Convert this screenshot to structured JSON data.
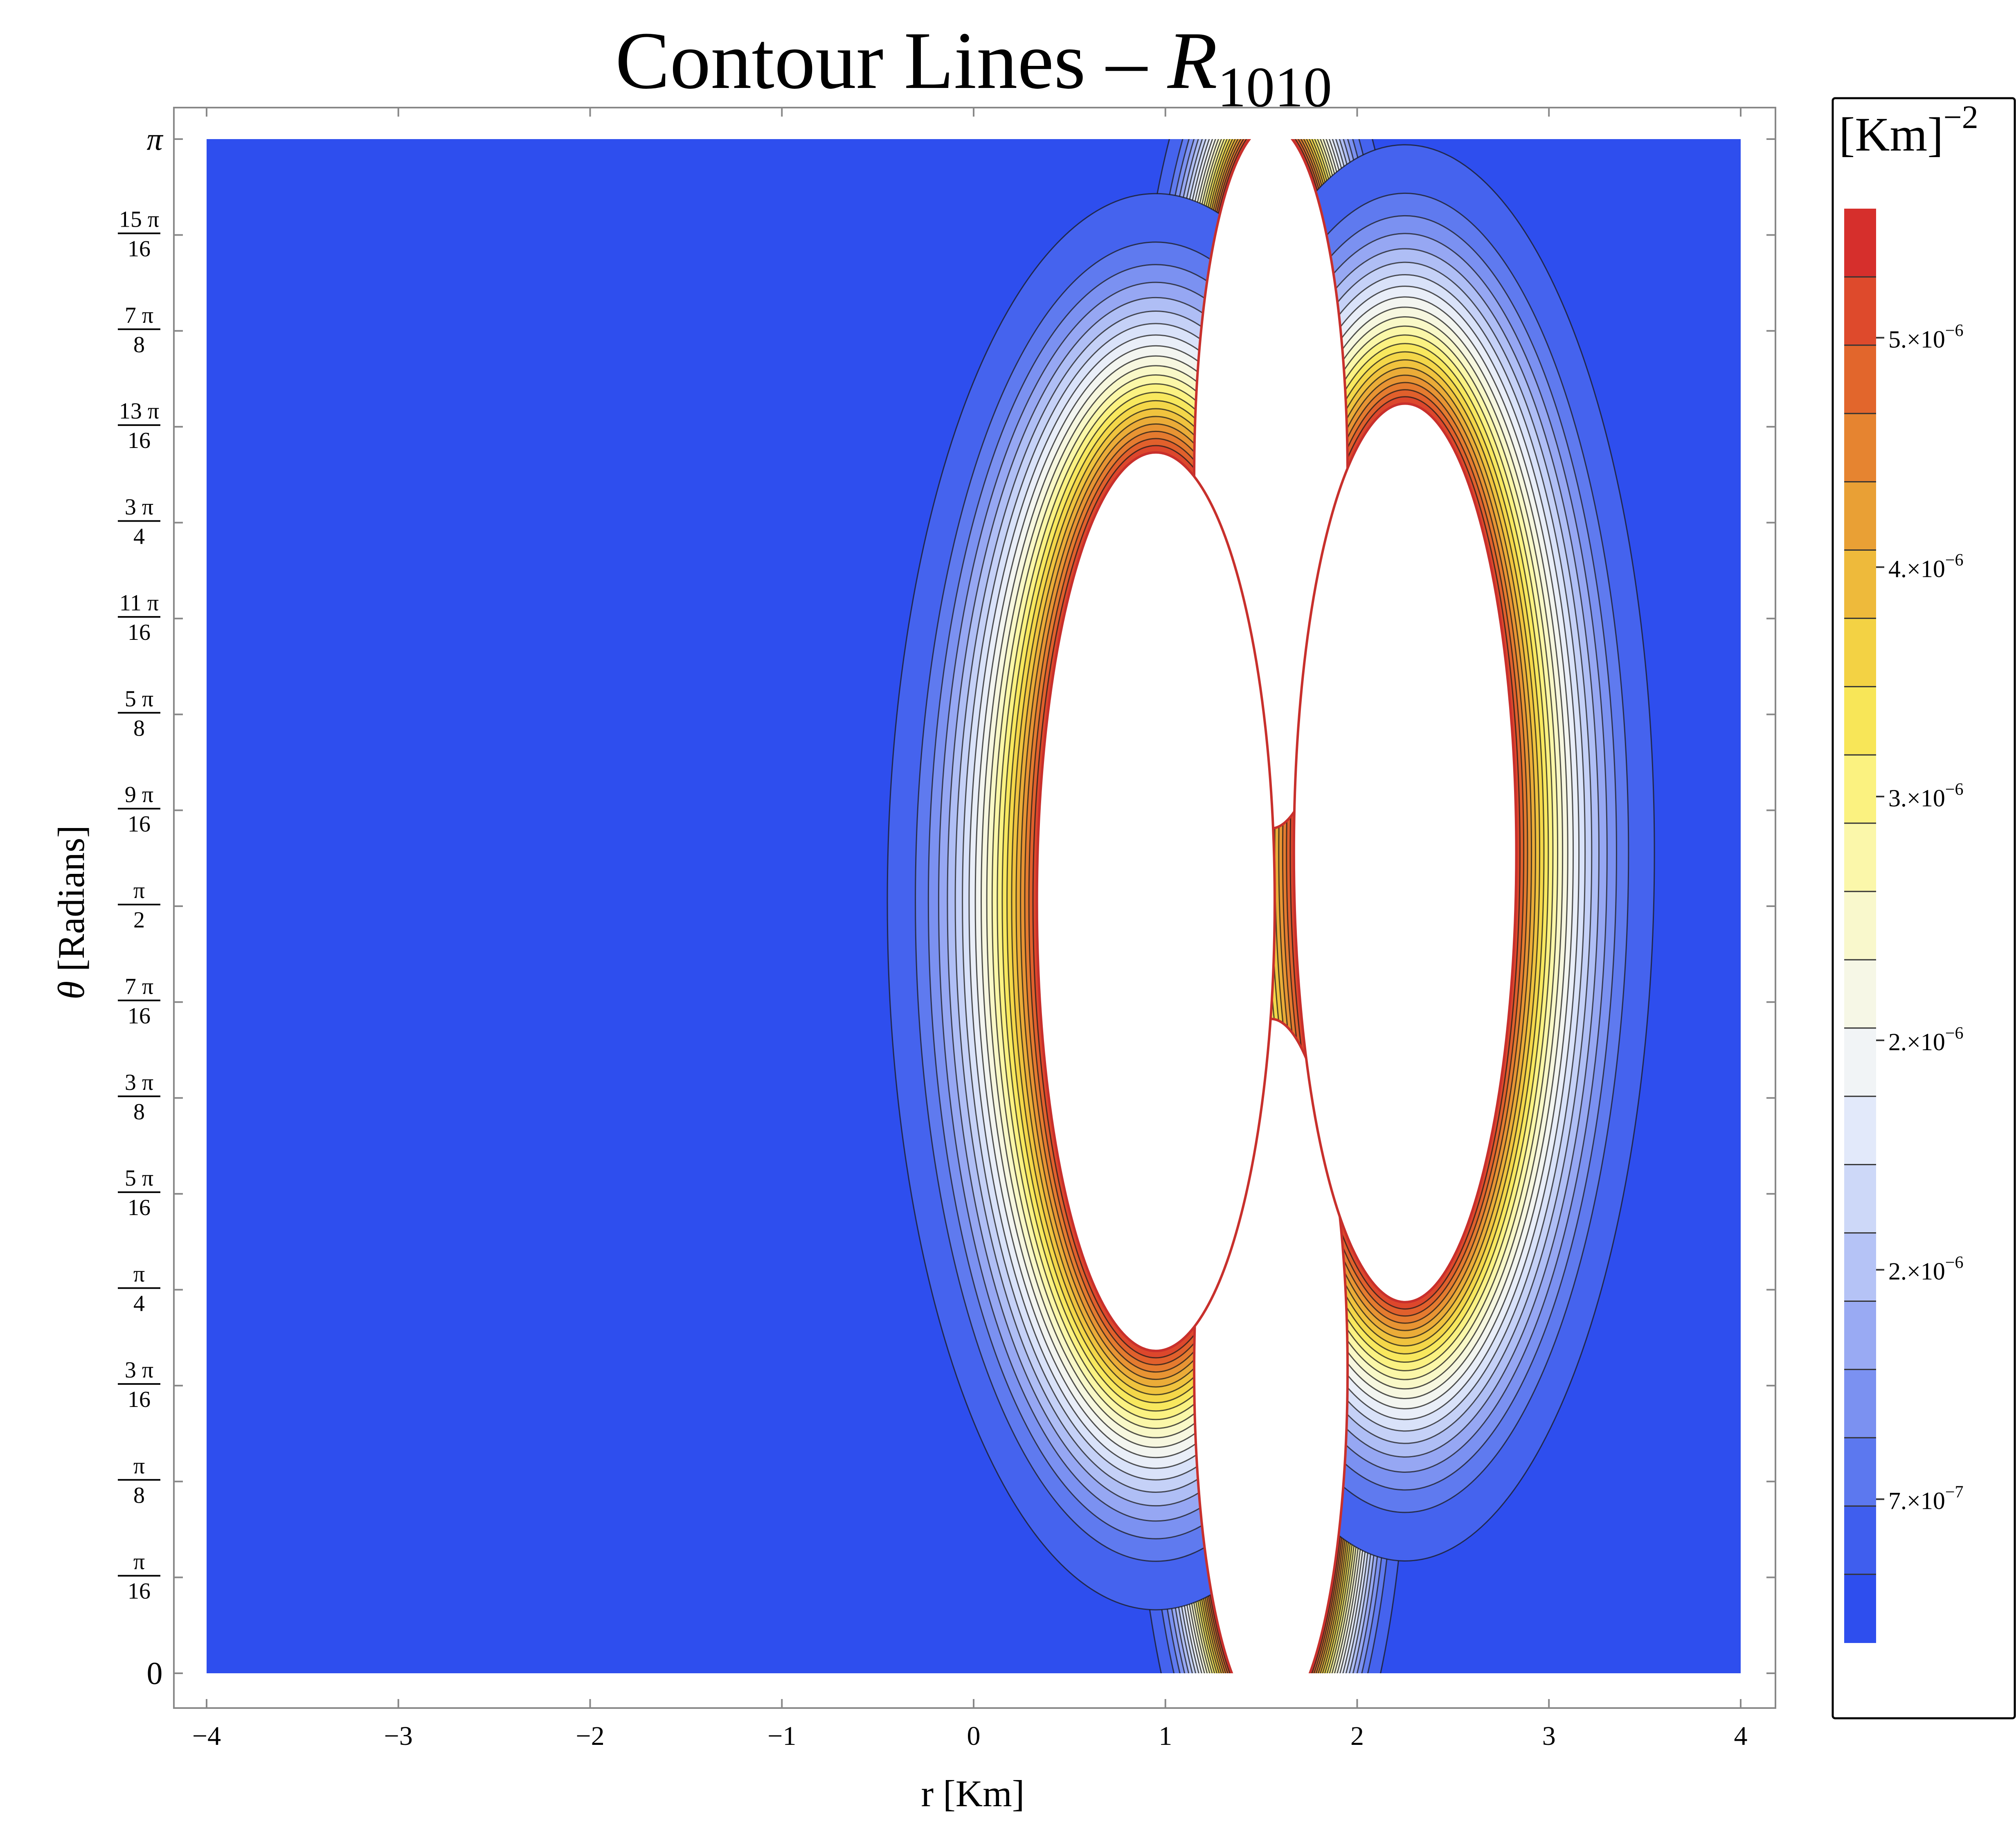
{
  "chart_data": {
    "type": "heatmap",
    "subtype": "contour",
    "title": {
      "main": "Contour Lines – ",
      "symbol": "R",
      "subscript": "1010"
    },
    "xlabel": "r [Km]",
    "ylabel": {
      "symbol": "θ",
      "text": " [Radians]"
    },
    "xlim": [
      -4,
      4
    ],
    "ylim_radians": [
      0,
      3.14159265
    ],
    "xticks": [
      {
        "value": -4,
        "label": "−4"
      },
      {
        "value": -3,
        "label": "−3"
      },
      {
        "value": -2,
        "label": "−2"
      },
      {
        "value": -1,
        "label": "−1"
      },
      {
        "value": 0,
        "label": "0"
      },
      {
        "value": 1,
        "label": "1"
      },
      {
        "value": 2,
        "label": "2"
      },
      {
        "value": 3,
        "label": "3"
      },
      {
        "value": 4,
        "label": "4"
      }
    ],
    "yticks": [
      {
        "k": 0,
        "kind": "plain",
        "text": "0"
      },
      {
        "k": 1,
        "kind": "frac",
        "num": "π",
        "den": "16"
      },
      {
        "k": 2,
        "kind": "frac",
        "num": "π",
        "den": "8"
      },
      {
        "k": 3,
        "kind": "frac",
        "num": "3 π",
        "den": "16"
      },
      {
        "k": 4,
        "kind": "frac",
        "num": "π",
        "den": "4"
      },
      {
        "k": 5,
        "kind": "frac",
        "num": "5 π",
        "den": "16"
      },
      {
        "k": 6,
        "kind": "frac",
        "num": "3 π",
        "den": "8"
      },
      {
        "k": 7,
        "kind": "frac",
        "num": "7 π",
        "den": "16"
      },
      {
        "k": 8,
        "kind": "frac",
        "num": "π",
        "den": "2"
      },
      {
        "k": 9,
        "kind": "frac",
        "num": "9 π",
        "den": "16"
      },
      {
        "k": 10,
        "kind": "frac",
        "num": "5 π",
        "den": "8"
      },
      {
        "k": 11,
        "kind": "frac",
        "num": "11 π",
        "den": "16"
      },
      {
        "k": 12,
        "kind": "frac",
        "num": "3 π",
        "den": "4"
      },
      {
        "k": 13,
        "kind": "frac",
        "num": "13 π",
        "den": "16"
      },
      {
        "k": 14,
        "kind": "frac",
        "num": "7 π",
        "den": "8"
      },
      {
        "k": 15,
        "kind": "frac",
        "num": "15 π",
        "den": "16"
      },
      {
        "k": 16,
        "kind": "plain",
        "text": "π"
      }
    ],
    "background_color": "#2e4eee",
    "lobes": [
      {
        "name": "top",
        "cx": 1.55,
        "cy_radians": 2.45,
        "core_rx": 0.4,
        "core_ry_radians": 0.72,
        "outer_rx": 0.72,
        "outer_ry_radians": 1.02
      },
      {
        "name": "bottom",
        "cx": 1.55,
        "cy_radians": 0.62,
        "core_rx": 0.4,
        "core_ry_radians": 0.72,
        "outer_rx": 0.72,
        "outer_ry_radians": 1.02
      },
      {
        "name": "left",
        "cx": 0.95,
        "cy_radians": 1.58,
        "core_rx": 0.62,
        "core_ry_radians": 0.92,
        "outer_rx": 1.4,
        "outer_ry_radians": 1.45
      },
      {
        "name": "right",
        "cx": 2.25,
        "cy_radians": 1.68,
        "core_rx": 0.58,
        "core_ry_radians": 0.92,
        "outer_rx": 1.3,
        "outer_ry_radians": 1.45
      }
    ],
    "contour_levels": 22,
    "colorbar": {
      "unit_label": {
        "text": "[Km]",
        "exponent": "−2"
      },
      "colors": [
        "#2e4eee",
        "#3f5eee",
        "#5c78ef",
        "#7b91f1",
        "#99aaf3",
        "#b5c3f6",
        "#cdd8f8",
        "#e2e9fa",
        "#f1f4f6",
        "#f6f7e6",
        "#f9f8cc",
        "#fbf7aa",
        "#fbf280",
        "#f8e658",
        "#f3d244",
        "#eeba3b",
        "#e9a035",
        "#e68430",
        "#e2662c",
        "#de4a2c",
        "#d62f2c"
      ],
      "labels": [
        {
          "mantissa": "5.",
          "exponent": "−6",
          "position": 0.91
        },
        {
          "mantissa": "4.",
          "exponent": "−6",
          "position": 0.75
        },
        {
          "mantissa": "3.",
          "exponent": "−6",
          "position": 0.59
        },
        {
          "mantissa": "2.",
          "exponent": "−6",
          "position": 0.42
        },
        {
          "mantissa": "2.",
          "exponent": "−6",
          "position": 0.26
        },
        {
          "mantissa": "7.",
          "exponent": "−7",
          "position": 0.1
        }
      ]
    }
  }
}
